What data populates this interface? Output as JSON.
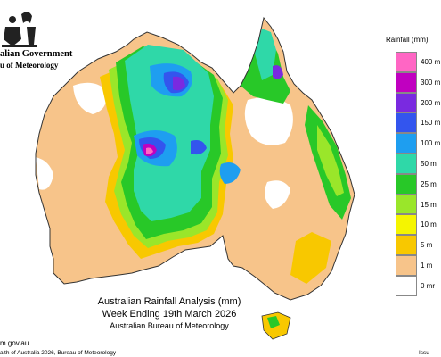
{
  "header": {
    "gov_line1": "alian Government",
    "gov_line2": "u of Meteorology"
  },
  "map": {
    "title": "Australian Rainfall Analysis (mm)",
    "period": "Week Ending 19th March 2026",
    "source": "Australian Bureau of Meteorology"
  },
  "footer": {
    "url": "m.gov.au",
    "copyright": "alth of Australia 2026, Bureau of Meteorology",
    "issue": "Issu"
  },
  "legend": {
    "title": "Rainfall (mm)",
    "items": [
      {
        "label": "400 m",
        "color": "#ff66c4"
      },
      {
        "label": "300 m",
        "color": "#c000c0"
      },
      {
        "label": "200 m",
        "color": "#7a2ae0"
      },
      {
        "label": "150 m",
        "color": "#3355ee"
      },
      {
        "label": "100 m",
        "color": "#1e9ef0"
      },
      {
        "label": "50 m",
        "color": "#2fd8a8"
      },
      {
        "label": "25 m",
        "color": "#28c828"
      },
      {
        "label": "15 m",
        "color": "#9ae62a"
      },
      {
        "label": "10 m",
        "color": "#f5f500"
      },
      {
        "label": "5 m",
        "color": "#f8c800"
      },
      {
        "label": "1 m",
        "color": "#f7c48a"
      },
      {
        "label": "0 mr",
        "color": "#ffffff"
      }
    ]
  }
}
